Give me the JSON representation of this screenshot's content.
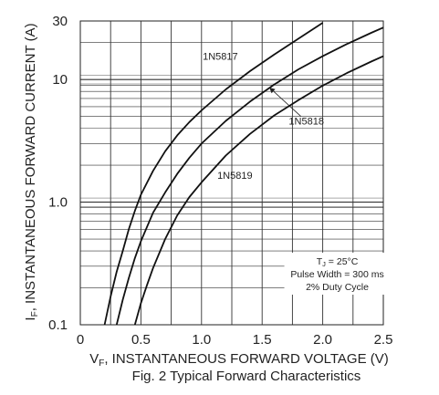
{
  "chart_data": {
    "type": "line",
    "caption": "Fig. 2  Typical Forward Characteristics",
    "xlabel": {
      "main": "V",
      "sub": "F",
      "rest": ", INSTANTANEOUS FORWARD VOLTAGE (V)"
    },
    "ylabel": {
      "main": "I",
      "sub": "F",
      "rest": ", INSTANTANEOUS FORWARD CURRENT (A)"
    },
    "xlim": [
      0,
      2.5
    ],
    "ylim": [
      0.1,
      30
    ],
    "yscale": "log",
    "x_ticks": [
      {
        "value": 0,
        "label": "0"
      },
      {
        "value": 0.5,
        "label": "0.5"
      },
      {
        "value": 1.0,
        "label": "1.0"
      },
      {
        "value": 1.5,
        "label": "1.5"
      },
      {
        "value": 2.0,
        "label": "2.0"
      },
      {
        "value": 2.5,
        "label": "2.5"
      }
    ],
    "y_ticks": [
      {
        "value": 0.1,
        "label": "0.1"
      },
      {
        "value": 1.0,
        "label": "1.0"
      },
      {
        "value": 10,
        "label": "10"
      },
      {
        "value": 30,
        "label": "30"
      }
    ],
    "grid": true,
    "series": [
      {
        "name": "1N5817",
        "x": [
          0.2,
          0.25,
          0.3,
          0.35,
          0.4,
          0.45,
          0.5,
          0.6,
          0.7,
          0.8,
          0.9,
          1.0,
          1.2,
          1.4,
          1.6,
          1.8,
          2.0
        ],
        "y": [
          0.1,
          0.17,
          0.27,
          0.4,
          0.6,
          0.85,
          1.15,
          1.8,
          2.6,
          3.5,
          4.5,
          5.6,
          8.3,
          11.7,
          16,
          21.5,
          29
        ]
      },
      {
        "name": "1N5818",
        "x": [
          0.3,
          0.35,
          0.4,
          0.45,
          0.5,
          0.6,
          0.7,
          0.8,
          0.9,
          1.0,
          1.2,
          1.4,
          1.6,
          1.8,
          2.0,
          2.2,
          2.4,
          2.5
        ],
        "y": [
          0.1,
          0.16,
          0.24,
          0.35,
          0.48,
          0.82,
          1.2,
          1.7,
          2.3,
          3.0,
          4.6,
          6.6,
          9.1,
          12.1,
          15.5,
          19.5,
          24,
          26.5
        ]
      },
      {
        "name": "1N5819",
        "x": [
          0.45,
          0.5,
          0.55,
          0.6,
          0.7,
          0.8,
          0.9,
          1.0,
          1.2,
          1.4,
          1.6,
          1.8,
          2.0,
          2.2,
          2.4,
          2.5
        ],
        "y": [
          0.1,
          0.15,
          0.21,
          0.29,
          0.5,
          0.78,
          1.1,
          1.45,
          2.4,
          3.6,
          5.1,
          6.8,
          8.9,
          11.3,
          14,
          15.5
        ]
      }
    ],
    "notes": [
      "T",
      "J",
      " = 25°C",
      "Pulse Width = 300 ms",
      "2% Duty Cycle"
    ]
  }
}
